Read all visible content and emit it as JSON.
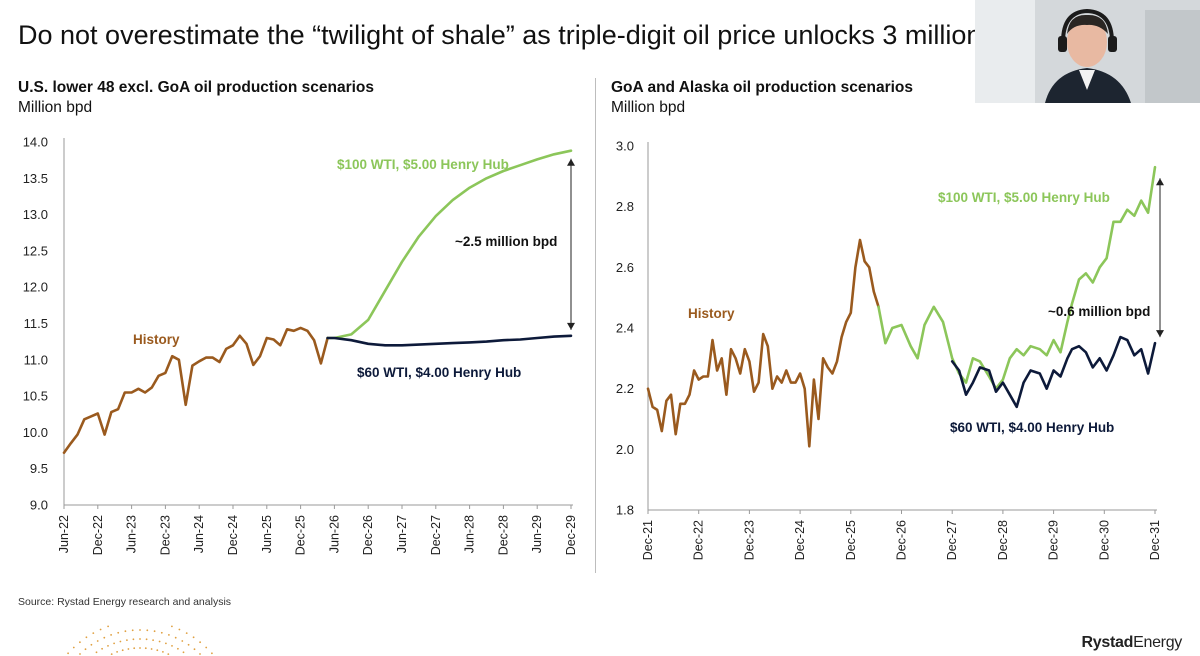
{
  "headline": "Do not overestimate the “twilight of shale” as triple-digit oil price unlocks 3 million",
  "source": "Source: Rystad Energy research and analysis",
  "logo": {
    "bold": "Rystad",
    "regular": "Energy"
  },
  "colors": {
    "history": "#9a5a1e",
    "high": "#8cc65a",
    "low": "#0d1a3a",
    "axis": "#9a9a9a"
  },
  "chart_data": [
    {
      "type": "line",
      "title": "U.S. lower 48 excl. GoA oil production scenarios",
      "ylabel": "Million bpd",
      "ylim": [
        9.0,
        14.0
      ],
      "yticks": [
        "14.0",
        "13.5",
        "13.0",
        "12.5",
        "12.0",
        "11.5",
        "11.0",
        "10.5",
        "10.0",
        "9.5",
        "9.0"
      ],
      "xticks": [
        "Jun-22",
        "Dec-22",
        "Jun-23",
        "Dec-23",
        "Jun-24",
        "Dec-24",
        "Jun-25",
        "Dec-25",
        "Jun-26",
        "Dec-26",
        "Jun-27",
        "Dec-27",
        "Jun-28",
        "Dec-28",
        "Jun-29",
        "Dec-29"
      ],
      "series": [
        {
          "name": "History",
          "color": "#9a5a1e",
          "t": [
            0,
            0.2,
            0.4,
            0.6,
            0.8,
            1,
            1.2,
            1.4,
            1.6,
            1.8,
            2,
            2.2,
            2.4,
            2.6,
            2.8,
            3,
            3.2,
            3.4,
            3.6,
            3.8,
            4,
            4.2,
            4.4,
            4.6,
            4.8,
            5,
            5.2,
            5.4,
            5.6,
            5.8,
            6,
            6.2,
            6.4,
            6.6,
            6.8,
            7,
            7.2,
            7.4,
            7.6,
            7.8
          ],
          "values": [
            9.72,
            9.85,
            9.97,
            10.18,
            10.22,
            10.26,
            9.97,
            10.28,
            10.32,
            10.55,
            10.55,
            10.6,
            10.55,
            10.62,
            10.78,
            10.82,
            11.05,
            11.0,
            10.38,
            10.92,
            10.98,
            11.03,
            11.03,
            10.97,
            11.15,
            11.2,
            11.33,
            11.22,
            10.93,
            11.05,
            11.3,
            11.28,
            11.2,
            11.42,
            11.4,
            11.44,
            11.4,
            11.27,
            10.95,
            11.3
          ]
        },
        {
          "name": "$100 WTI, $5.00 Henry Hub",
          "color": "#8cc65a",
          "t": [
            7.8,
            8,
            8.5,
            9,
            9.5,
            10,
            10.5,
            11,
            11.5,
            12,
            12.5,
            13,
            13.5,
            14,
            14.5,
            15
          ],
          "values": [
            11.3,
            11.3,
            11.35,
            11.55,
            11.95,
            12.35,
            12.7,
            12.98,
            13.2,
            13.37,
            13.5,
            13.6,
            13.68,
            13.76,
            13.83,
            13.88
          ]
        },
        {
          "name": "$60 WTI, $4.00 Henry Hub",
          "color": "#0d1a3a",
          "t": [
            7.8,
            8,
            8.5,
            9,
            9.5,
            10,
            10.5,
            11,
            11.5,
            12,
            12.5,
            13,
            13.5,
            14,
            14.5,
            15
          ],
          "values": [
            11.3,
            11.3,
            11.27,
            11.22,
            11.2,
            11.2,
            11.21,
            11.22,
            11.23,
            11.24,
            11.25,
            11.27,
            11.28,
            11.3,
            11.32,
            11.33
          ]
        }
      ],
      "annotations": {
        "history": "History",
        "high": "$100 WTI, $5.00 Henry Hub",
        "low": "$60 WTI, $4.00 Henry Hub",
        "gap": "~2.5 million bpd"
      }
    },
    {
      "type": "line",
      "title": "GoA and Alaska oil production scenarios",
      "ylabel": "Million bpd",
      "ylim": [
        1.8,
        3.0
      ],
      "yticks": [
        "3.0",
        "2.8",
        "2.6",
        "2.4",
        "2.2",
        "2.0",
        "1.8"
      ],
      "xticks": [
        "Dec-21",
        "Dec-22",
        "Dec-23",
        "Dec-24",
        "Dec-25",
        "Dec-26",
        "Dec-27",
        "Dec-28",
        "Dec-29",
        "Dec-30",
        "Dec-31"
      ],
      "series": [
        {
          "name": "History",
          "color": "#9a5a1e",
          "t": [
            0,
            0.1,
            0.2,
            0.3,
            0.4,
            0.5,
            0.6,
            0.7,
            0.8,
            0.9,
            1,
            1.1,
            1.2,
            1.3,
            1.4,
            1.5,
            1.6,
            1.7,
            1.8,
            1.9,
            2,
            2.1,
            2.2,
            2.3,
            2.4,
            2.5,
            2.6,
            2.7,
            2.8,
            2.9,
            3,
            3.1,
            3.2,
            3.3,
            3.4,
            3.5,
            3.6,
            3.7,
            3.8,
            3.9,
            4,
            4.1,
            4.2,
            4.3,
            4.4,
            4.5,
            4.6,
            4.7,
            4.8,
            4.9,
            5
          ],
          "values": [
            2.2,
            2.14,
            2.13,
            2.06,
            2.16,
            2.18,
            2.05,
            2.15,
            2.15,
            2.18,
            2.26,
            2.23,
            2.24,
            2.24,
            2.36,
            2.26,
            2.3,
            2.18,
            2.33,
            2.3,
            2.25,
            2.33,
            2.29,
            2.19,
            2.22,
            2.38,
            2.34,
            2.2,
            2.24,
            2.22,
            2.26,
            2.22,
            2.22,
            2.25,
            2.2,
            2.01,
            2.23,
            2.1,
            2.3,
            2.27,
            2.25,
            2.29,
            2.37,
            2.42,
            2.45,
            2.6,
            2.69,
            2.62,
            2.6,
            2.52,
            2.47
          ]
        },
        {
          "name": "$100 WTI, $5.00 Henry Hub",
          "color": "#8cc65a",
          "t": [
            5,
            5.15,
            5.3,
            5.5,
            5.7,
            5.85,
            6,
            6.2,
            6.4,
            6.6,
            6.75,
            6.9,
            7.05,
            7.2,
            7.4,
            7.55,
            7.7,
            7.85,
            8,
            8.15,
            8.3,
            8.5,
            8.65,
            8.8,
            8.95,
            9.1,
            9.2,
            9.35,
            9.5,
            9.65,
            9.8,
            9.95,
            10.1,
            10.25,
            10.4,
            10.55,
            10.7,
            10.85,
            11
          ],
          "values": [
            2.47,
            2.35,
            2.4,
            2.41,
            2.34,
            2.3,
            2.41,
            2.47,
            2.42,
            2.3,
            2.25,
            2.22,
            2.3,
            2.29,
            2.24,
            2.2,
            2.23,
            2.3,
            2.33,
            2.31,
            2.34,
            2.33,
            2.31,
            2.36,
            2.32,
            2.42,
            2.48,
            2.56,
            2.58,
            2.55,
            2.6,
            2.63,
            2.75,
            2.75,
            2.79,
            2.77,
            2.82,
            2.78,
            2.93
          ]
        },
        {
          "name": "$60 WTI, $4.00 Henry Hub",
          "color": "#0d1a3a",
          "t": [
            6.6,
            6.75,
            6.9,
            7.05,
            7.2,
            7.4,
            7.55,
            7.7,
            7.85,
            8,
            8.15,
            8.3,
            8.5,
            8.65,
            8.8,
            8.95,
            9.1,
            9.2,
            9.35,
            9.5,
            9.65,
            9.8,
            9.95,
            10.1,
            10.25,
            10.4,
            10.55,
            10.7,
            10.85,
            11
          ],
          "values": [
            2.29,
            2.26,
            2.18,
            2.22,
            2.27,
            2.26,
            2.19,
            2.22,
            2.18,
            2.14,
            2.22,
            2.26,
            2.25,
            2.2,
            2.26,
            2.24,
            2.3,
            2.33,
            2.34,
            2.32,
            2.27,
            2.3,
            2.26,
            2.31,
            2.37,
            2.36,
            2.31,
            2.33,
            2.25,
            2.35
          ]
        }
      ],
      "annotations": {
        "history": "History",
        "high": "$100 WTI, $5.00 Henry Hub",
        "low": "$60 WTI, $4.00 Henry Hub",
        "gap": "~0.6 million bpd"
      }
    }
  ]
}
